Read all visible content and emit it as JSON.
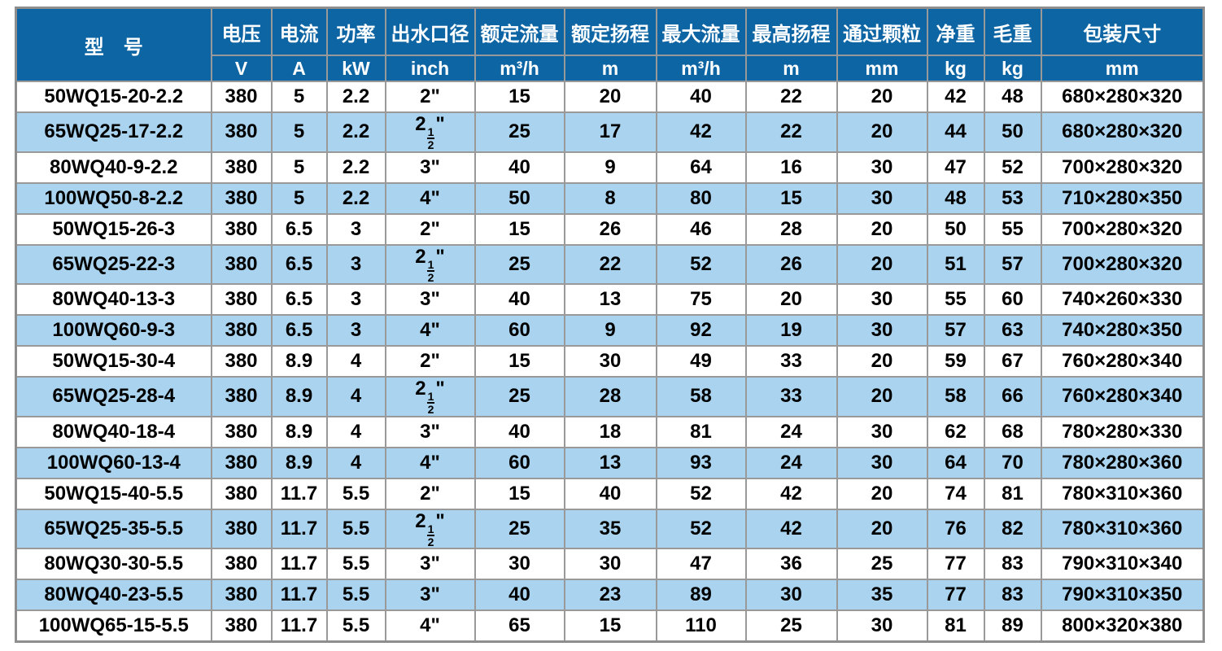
{
  "theme": {
    "header_bg": "#0e65a4",
    "header_text": "#ffffff",
    "row_bg": "#ffffff",
    "row_alt_bg": "#a9d3ee",
    "grid_line": "#999999",
    "outer_border": "#8e8e8e",
    "data_text": "#000000"
  },
  "table": {
    "columns": [
      {
        "key": "model",
        "label": "型　号",
        "unit": null
      },
      {
        "key": "voltage",
        "label": "电压",
        "unit": "V"
      },
      {
        "key": "current",
        "label": "电流",
        "unit": "A"
      },
      {
        "key": "power",
        "label": "功率",
        "unit": "kW"
      },
      {
        "key": "outlet",
        "label": "出水口径",
        "unit": "inch"
      },
      {
        "key": "rated_flow",
        "label": "额定流量",
        "unit": "m³/h"
      },
      {
        "key": "rated_head",
        "label": "额定扬程",
        "unit": "m"
      },
      {
        "key": "max_flow",
        "label": "最大流量",
        "unit": "m³/h"
      },
      {
        "key": "max_head",
        "label": "最高扬程",
        "unit": "m"
      },
      {
        "key": "particle",
        "label": "通过颗粒",
        "unit": "mm"
      },
      {
        "key": "net_weight",
        "label": "净重",
        "unit": "kg"
      },
      {
        "key": "gross_weight",
        "label": "毛重",
        "unit": "kg"
      },
      {
        "key": "packing",
        "label": "包装尺寸",
        "unit": "mm"
      }
    ],
    "rows": [
      {
        "model": "50WQ15-20-2.2",
        "voltage": "380",
        "current": "5",
        "power": "2.2",
        "outlet": "2\"",
        "rated_flow": "15",
        "rated_head": "20",
        "max_flow": "40",
        "max_head": "22",
        "particle": "20",
        "net_weight": "42",
        "gross_weight": "48",
        "packing": "680×280×320"
      },
      {
        "model": "65WQ25-17-2.2",
        "voltage": "380",
        "current": "5",
        "power": "2.2",
        "outlet": "2½\"",
        "rated_flow": "25",
        "rated_head": "17",
        "max_flow": "42",
        "max_head": "22",
        "particle": "20",
        "net_weight": "44",
        "gross_weight": "50",
        "packing": "680×280×320"
      },
      {
        "model": "80WQ40-9-2.2",
        "voltage": "380",
        "current": "5",
        "power": "2.2",
        "outlet": "3\"",
        "rated_flow": "40",
        "rated_head": "9",
        "max_flow": "64",
        "max_head": "16",
        "particle": "30",
        "net_weight": "47",
        "gross_weight": "52",
        "packing": "700×280×320"
      },
      {
        "model": "100WQ50-8-2.2",
        "voltage": "380",
        "current": "5",
        "power": "2.2",
        "outlet": "4\"",
        "rated_flow": "50",
        "rated_head": "8",
        "max_flow": "80",
        "max_head": "15",
        "particle": "30",
        "net_weight": "48",
        "gross_weight": "53",
        "packing": "710×280×350"
      },
      {
        "model": "50WQ15-26-3",
        "voltage": "380",
        "current": "6.5",
        "power": "3",
        "outlet": "2\"",
        "rated_flow": "15",
        "rated_head": "26",
        "max_flow": "46",
        "max_head": "28",
        "particle": "20",
        "net_weight": "50",
        "gross_weight": "55",
        "packing": "700×280×320"
      },
      {
        "model": "65WQ25-22-3",
        "voltage": "380",
        "current": "6.5",
        "power": "3",
        "outlet": "2½\"",
        "rated_flow": "25",
        "rated_head": "22",
        "max_flow": "52",
        "max_head": "26",
        "particle": "20",
        "net_weight": "51",
        "gross_weight": "57",
        "packing": "700×280×320"
      },
      {
        "model": "80WQ40-13-3",
        "voltage": "380",
        "current": "6.5",
        "power": "3",
        "outlet": "3\"",
        "rated_flow": "40",
        "rated_head": "13",
        "max_flow": "75",
        "max_head": "20",
        "particle": "30",
        "net_weight": "55",
        "gross_weight": "60",
        "packing": "740×260×330"
      },
      {
        "model": "100WQ60-9-3",
        "voltage": "380",
        "current": "6.5",
        "power": "3",
        "outlet": "4\"",
        "rated_flow": "60",
        "rated_head": "9",
        "max_flow": "92",
        "max_head": "19",
        "particle": "30",
        "net_weight": "57",
        "gross_weight": "63",
        "packing": "740×280×350"
      },
      {
        "model": "50WQ15-30-4",
        "voltage": "380",
        "current": "8.9",
        "power": "4",
        "outlet": "2\"",
        "rated_flow": "15",
        "rated_head": "30",
        "max_flow": "49",
        "max_head": "33",
        "particle": "20",
        "net_weight": "59",
        "gross_weight": "67",
        "packing": "760×280×340"
      },
      {
        "model": "65WQ25-28-4",
        "voltage": "380",
        "current": "8.9",
        "power": "4",
        "outlet": "2½\"",
        "rated_flow": "25",
        "rated_head": "28",
        "max_flow": "58",
        "max_head": "33",
        "particle": "20",
        "net_weight": "58",
        "gross_weight": "66",
        "packing": "760×280×340"
      },
      {
        "model": "80WQ40-18-4",
        "voltage": "380",
        "current": "8.9",
        "power": "4",
        "outlet": "3\"",
        "rated_flow": "40",
        "rated_head": "18",
        "max_flow": "81",
        "max_head": "24",
        "particle": "30",
        "net_weight": "62",
        "gross_weight": "68",
        "packing": "780×280×330"
      },
      {
        "model": "100WQ60-13-4",
        "voltage": "380",
        "current": "8.9",
        "power": "4",
        "outlet": "4\"",
        "rated_flow": "60",
        "rated_head": "13",
        "max_flow": "93",
        "max_head": "24",
        "particle": "30",
        "net_weight": "64",
        "gross_weight": "70",
        "packing": "780×280×360"
      },
      {
        "model": "50WQ15-40-5.5",
        "voltage": "380",
        "current": "11.7",
        "power": "5.5",
        "outlet": "2\"",
        "rated_flow": "15",
        "rated_head": "40",
        "max_flow": "52",
        "max_head": "42",
        "particle": "20",
        "net_weight": "74",
        "gross_weight": "81",
        "packing": "780×310×360"
      },
      {
        "model": "65WQ25-35-5.5",
        "voltage": "380",
        "current": "11.7",
        "power": "5.5",
        "outlet": "2½\"",
        "rated_flow": "25",
        "rated_head": "35",
        "max_flow": "52",
        "max_head": "42",
        "particle": "20",
        "net_weight": "76",
        "gross_weight": "82",
        "packing": "780×310×360"
      },
      {
        "model": "80WQ30-30-5.5",
        "voltage": "380",
        "current": "11.7",
        "power": "5.5",
        "outlet": "3\"",
        "rated_flow": "30",
        "rated_head": "30",
        "max_flow": "47",
        "max_head": "36",
        "particle": "25",
        "net_weight": "77",
        "gross_weight": "83",
        "packing": "790×310×340"
      },
      {
        "model": "80WQ40-23-5.5",
        "voltage": "380",
        "current": "11.7",
        "power": "5.5",
        "outlet": "3\"",
        "rated_flow": "40",
        "rated_head": "23",
        "max_flow": "89",
        "max_head": "30",
        "particle": "35",
        "net_weight": "77",
        "gross_weight": "83",
        "packing": "790×310×350"
      },
      {
        "model": "100WQ65-15-5.5",
        "voltage": "380",
        "current": "11.7",
        "power": "5.5",
        "outlet": "4\"",
        "rated_flow": "65",
        "rated_head": "15",
        "max_flow": "110",
        "max_head": "25",
        "particle": "30",
        "net_weight": "81",
        "gross_weight": "89",
        "packing": "800×320×380"
      }
    ]
  }
}
